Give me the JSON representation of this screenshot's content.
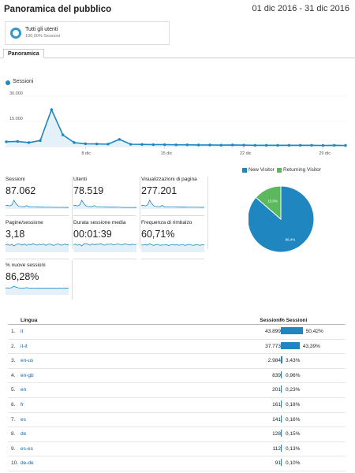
{
  "header": {
    "title": "Panoramica del pubblico",
    "date_range": "01 dic 2016 - 31 dic 2016"
  },
  "segment": {
    "name": "Tutti gli utenti",
    "subtitle": "100,00% Sessioni"
  },
  "tabs": [
    {
      "label": "Panoramica",
      "active": true
    }
  ],
  "colors": {
    "primary": "#1f86bf",
    "secondary": "#5cb85c",
    "segment_ring": "#2e9ad0"
  },
  "chart_data": [
    {
      "type": "area",
      "series": [
        {
          "name": "Sessioni",
          "values": [
            2900,
            3100,
            2400,
            3600,
            22000,
            7000,
            2400,
            1700,
            1600,
            1500,
            4300,
            1400,
            1300,
            1200,
            1200,
            1100,
            1100,
            1000,
            1000,
            900,
            1000,
            900,
            800,
            800,
            800,
            800,
            800,
            800,
            700,
            800,
            700
          ]
        }
      ],
      "x": [
        "1 dic",
        "2 dic",
        "3 dic",
        "4 dic",
        "5 dic",
        "6 dic",
        "7 dic",
        "8 dic",
        "9 dic",
        "10 dic",
        "11 dic",
        "12 dic",
        "13 dic",
        "14 dic",
        "15 dic",
        "16 dic",
        "17 dic",
        "18 dic",
        "19 dic",
        "20 dic",
        "21 dic",
        "22 dic",
        "23 dic",
        "24 dic",
        "25 dic",
        "26 dic",
        "27 dic",
        "28 dic",
        "29 dic",
        "30 dic",
        "31 dic"
      ],
      "x_tick_labels": [
        "8 dic",
        "15 dic",
        "22 dic",
        "29 dic"
      ],
      "x_tick_index": [
        7,
        14,
        21,
        28
      ],
      "y_tick_labels": [
        "30.000",
        "15.000"
      ],
      "y_tick_values": [
        30000,
        15000
      ],
      "ylim": [
        0,
        30000
      ],
      "grid": true
    },
    {
      "type": "pie",
      "categories": [
        "New Visitor",
        "Returning Visitor"
      ],
      "values": [
        86.4,
        13.6
      ],
      "slice_labels": [
        "86,4%",
        "13,6%"
      ],
      "colors": [
        "#1f86bf",
        "#5cb85c"
      ],
      "legend": "top"
    }
  ],
  "metrics": [
    {
      "label": "Sessioni",
      "value": "87.062",
      "spark": [
        3,
        3.2,
        2.5,
        3.7,
        9,
        5,
        2.5,
        1.8,
        1.7,
        1.6,
        3,
        1.5,
        1.4,
        1.3,
        1.3,
        1.2,
        1.2,
        1.1,
        1.1,
        1,
        1.1,
        1,
        0.9,
        0.9,
        0.9,
        0.9,
        0.9,
        0.9,
        0.8,
        0.9,
        0.8
      ]
    },
    {
      "label": "Utenti",
      "value": "78.519",
      "spark": [
        2.8,
        3,
        2.4,
        3.5,
        8.5,
        4.8,
        2.4,
        1.7,
        1.6,
        1.5,
        2.8,
        1.4,
        1.3,
        1.2,
        1.2,
        1.1,
        1.1,
        1,
        1,
        1,
        1,
        0.9,
        0.9,
        0.8,
        0.8,
        0.8,
        0.8,
        0.8,
        0.8,
        0.8,
        0.7
      ]
    },
    {
      "label": "Visualizzazioni di pagina",
      "value": "277.201",
      "spark": [
        3,
        3.3,
        2.6,
        3.8,
        9.2,
        5.2,
        2.6,
        1.9,
        1.8,
        1.7,
        3.2,
        1.6,
        1.5,
        1.4,
        1.4,
        1.3,
        1.3,
        1.2,
        1.2,
        1.1,
        1.2,
        1.1,
        1,
        1,
        1,
        1,
        1,
        1,
        0.9,
        1,
        0.9
      ]
    },
    {
      "label": "Pagine/sessione",
      "value": "3,18",
      "spark": [
        5,
        5.6,
        4.6,
        5.4,
        4.2,
        5.2,
        6,
        5.4,
        4.8,
        5.8,
        4.6,
        5.6,
        5,
        6,
        5.2,
        4.8,
        5.6,
        5,
        5.8,
        4.6,
        5.2,
        5.8,
        5,
        4.6,
        5.4,
        5.8,
        5,
        4.8,
        5.6,
        5.2,
        5
      ]
    },
    {
      "label": "Durata sessione media",
      "value": "00:01:39",
      "spark": [
        5,
        5.4,
        4.6,
        5.2,
        4,
        5.6,
        5.8,
        5.2,
        4.6,
        5.6,
        4.8,
        5.4,
        5.2,
        5.8,
        5,
        4.6,
        5.4,
        5.2,
        5.6,
        4.8,
        5,
        5.6,
        5.2,
        4.8,
        5.4,
        5.6,
        5,
        4.8,
        5.4,
        5,
        5.2
      ]
    },
    {
      "label": "Frequenza di rimbalzo",
      "value": "60,71%",
      "spark": [
        5.2,
        5,
        5.4,
        5,
        6.2,
        5.2,
        4.8,
        5.4,
        5.6,
        4.8,
        5.2,
        5,
        5.4,
        4.6,
        5.2,
        5.6,
        5,
        5.4,
        4.8,
        5.6,
        5.2,
        4.8,
        5.4,
        5.6,
        5,
        4.8,
        5.4,
        5.2,
        4.8,
        5.4,
        5
      ]
    },
    {
      "label": "% nuove sessioni",
      "value": "86,28%",
      "spark": [
        5,
        5.2,
        5,
        5.4,
        6.6,
        5.8,
        5.2,
        5,
        4.8,
        5,
        5.4,
        5,
        4.8,
        5,
        5,
        4.8,
        5,
        4.8,
        5,
        4.8,
        5,
        4.8,
        4.8,
        5,
        4.8,
        4.8,
        5,
        4.8,
        4.8,
        5,
        4.8
      ]
    }
  ],
  "language_table": {
    "headers": {
      "language": "Lingua",
      "sessions": "Sessioni",
      "pct": "% Sessioni"
    },
    "rows": [
      {
        "idx": "1.",
        "code": "it",
        "sessions": "43.899",
        "pct": "50,42%",
        "fraction": 0.5042
      },
      {
        "idx": "2.",
        "code": "it-it",
        "sessions": "37.773",
        "pct": "43,39%",
        "fraction": 0.4339
      },
      {
        "idx": "3.",
        "code": "en-us",
        "sessions": "2.984",
        "pct": "3,43%",
        "fraction": 0.0343
      },
      {
        "idx": "4.",
        "code": "en-gb",
        "sessions": "839",
        "pct": "0,96%",
        "fraction": 0.0096
      },
      {
        "idx": "5.",
        "code": "en",
        "sessions": "201",
        "pct": "0,23%",
        "fraction": 0.0023
      },
      {
        "idx": "6.",
        "code": "fr",
        "sessions": "161",
        "pct": "0,18%",
        "fraction": 0.0018
      },
      {
        "idx": "7.",
        "code": "es",
        "sessions": "141",
        "pct": "0,16%",
        "fraction": 0.0016
      },
      {
        "idx": "8.",
        "code": "de",
        "sessions": "128",
        "pct": "0,15%",
        "fraction": 0.0015
      },
      {
        "idx": "9.",
        "code": "es-es",
        "sessions": "112",
        "pct": "0,13%",
        "fraction": 0.0013
      },
      {
        "idx": "10.",
        "code": "de-de",
        "sessions": "91",
        "pct": "0,10%",
        "fraction": 0.001
      }
    ]
  }
}
